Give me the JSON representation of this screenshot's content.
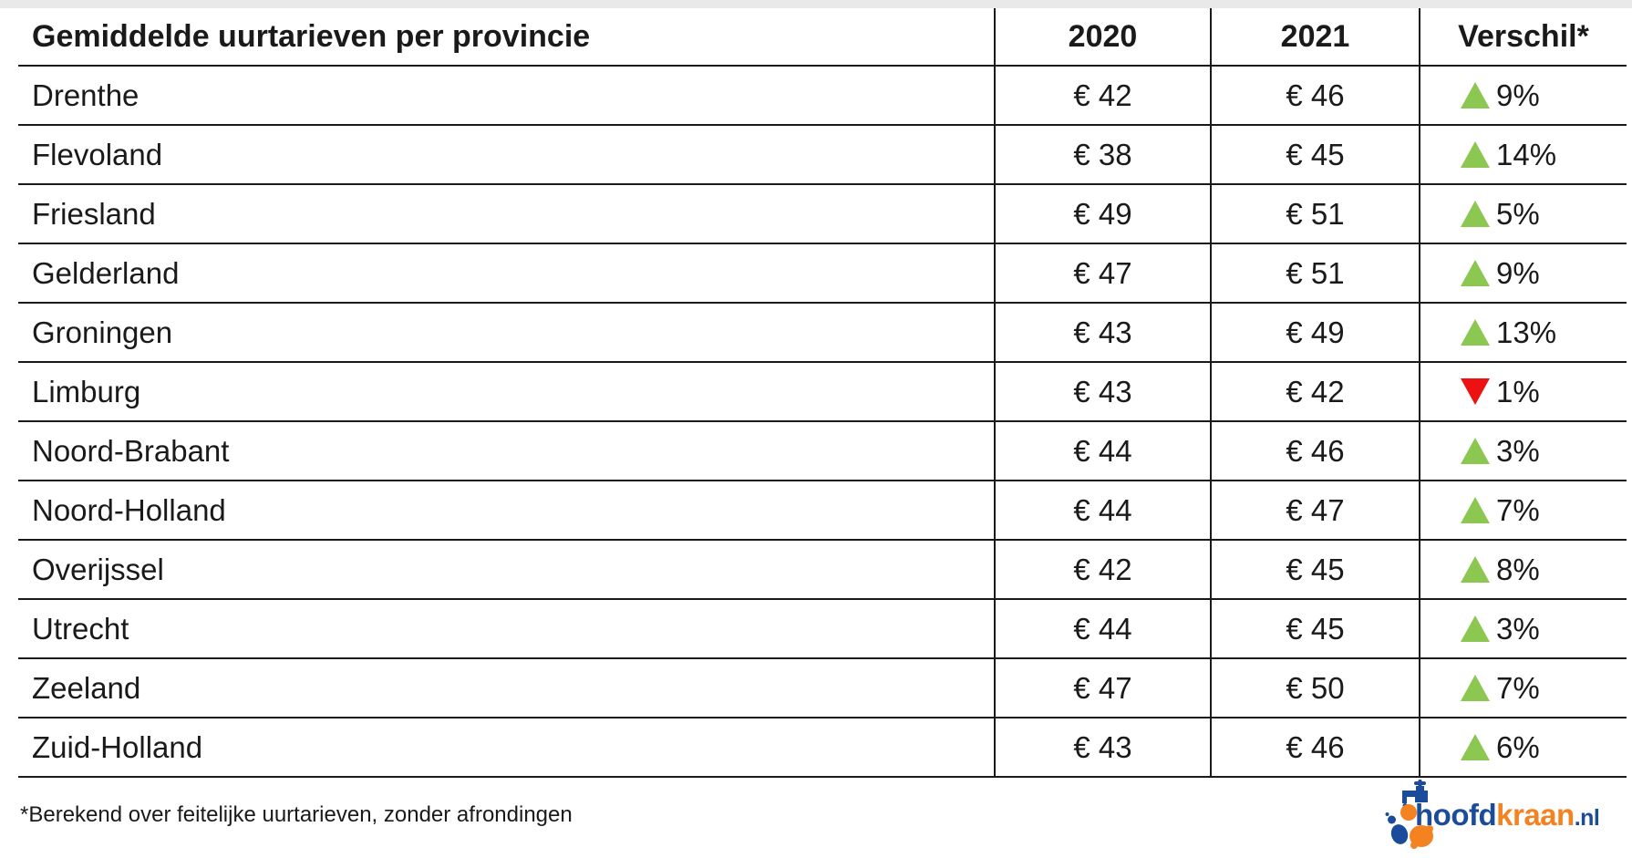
{
  "page": {
    "background": "#FFFFFF",
    "top_strip_color": "#E9E9E9"
  },
  "table": {
    "title": "Gemiddelde uurtarieven per provincie",
    "columns": [
      "2020",
      "2021",
      "Verschil*"
    ],
    "rows": [
      {
        "province": "Drenthe",
        "rate_2020": "€ 42",
        "rate_2021": "€ 46",
        "change": "9%",
        "direction": "up"
      },
      {
        "province": "Flevoland",
        "rate_2020": "€ 38",
        "rate_2021": "€ 45",
        "change": "14%",
        "direction": "up"
      },
      {
        "province": "Friesland",
        "rate_2020": "€ 49",
        "rate_2021": "€ 51",
        "change": "5%",
        "direction": "up"
      },
      {
        "province": "Gelderland",
        "rate_2020": "€ 47",
        "rate_2021": "€ 51",
        "change": "9%",
        "direction": "up"
      },
      {
        "province": "Groningen",
        "rate_2020": "€ 43",
        "rate_2021": "€ 49",
        "change": "13%",
        "direction": "up"
      },
      {
        "province": "Limburg",
        "rate_2020": "€ 43",
        "rate_2021": "€ 42",
        "change": "1%",
        "direction": "down"
      },
      {
        "province": "Noord-Brabant",
        "rate_2020": "€ 44",
        "rate_2021": "€ 46",
        "change": "3%",
        "direction": "up"
      },
      {
        "province": "Noord-Holland",
        "rate_2020": "€ 44",
        "rate_2021": "€ 47",
        "change": "7%",
        "direction": "up"
      },
      {
        "province": "Overijssel",
        "rate_2020": "€ 42",
        "rate_2021": "€ 45",
        "change": "8%",
        "direction": "up"
      },
      {
        "province": "Utrecht",
        "rate_2020": "€ 44",
        "rate_2021": "€ 45",
        "change": "3%",
        "direction": "up"
      },
      {
        "province": "Zeeland",
        "rate_2020": "€ 47",
        "rate_2021": "€ 50",
        "change": "7%",
        "direction": "up"
      },
      {
        "province": "Zuid-Holland",
        "rate_2020": "€ 43",
        "rate_2021": "€ 46",
        "change": "6%",
        "direction": "up"
      }
    ]
  },
  "footnote": "*Berekend over feitelijke uurtarieven, zonder afrondingen",
  "logo": {
    "part1": "hoofd",
    "part2": "kraan",
    "part3": ".nl",
    "blue": "#1B4C9B",
    "orange": "#F58220"
  },
  "colors": {
    "increase_triangle": "#8CC751",
    "decrease_triangle": "#EE1111",
    "grid_line": "#1A1A1A",
    "text": "#1A1A1A"
  },
  "chart_data": {
    "type": "table",
    "title": "Gemiddelde uurtarieven per provincie",
    "columns": [
      "Provincie",
      "2020",
      "2021",
      "Verschil*"
    ],
    "currency": "EUR",
    "rows": [
      [
        "Drenthe",
        42,
        46,
        "+9%"
      ],
      [
        "Flevoland",
        38,
        45,
        "+14%"
      ],
      [
        "Friesland",
        49,
        51,
        "+5%"
      ],
      [
        "Gelderland",
        47,
        51,
        "+9%"
      ],
      [
        "Groningen",
        43,
        49,
        "+13%"
      ],
      [
        "Limburg",
        43,
        42,
        "-1%"
      ],
      [
        "Noord-Brabant",
        44,
        46,
        "+3%"
      ],
      [
        "Noord-Holland",
        44,
        47,
        "+7%"
      ],
      [
        "Overijssel",
        42,
        45,
        "+8%"
      ],
      [
        "Utrecht",
        44,
        45,
        "+3%"
      ],
      [
        "Zeeland",
        47,
        50,
        "+7%"
      ],
      [
        "Zuid-Holland",
        43,
        46,
        "+6%"
      ]
    ],
    "footnote": "*Berekend over feitelijke uurtarieven, zonder afrondingen"
  }
}
